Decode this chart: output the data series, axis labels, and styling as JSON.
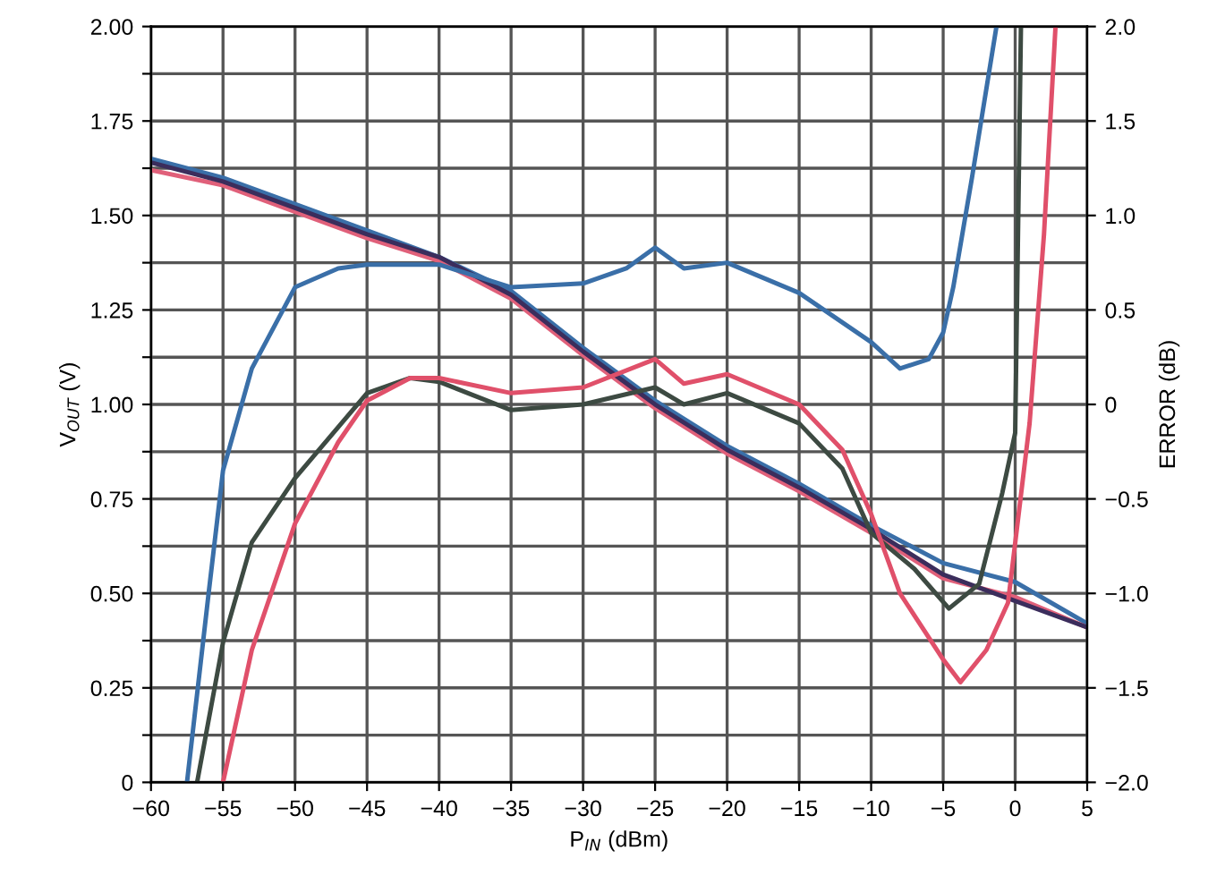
{
  "chart_data": {
    "type": "line",
    "xlabel": "P$_{IN}$ (dBm)",
    "ylabel": "V$_{OUT}$ (V)",
    "y2label": "ERROR (dB)",
    "xlim": [
      -60,
      5
    ],
    "xticks": [
      {
        "value": -60,
        "label": "−60"
      },
      {
        "value": -55,
        "label": "−55"
      },
      {
        "value": -50,
        "label": "−50"
      },
      {
        "value": -45,
        "label": "−45"
      },
      {
        "value": -40,
        "label": "−40"
      },
      {
        "value": -35,
        "label": "−35"
      },
      {
        "value": -30,
        "label": "−30"
      },
      {
        "value": -25,
        "label": "−25"
      },
      {
        "value": -20,
        "label": "−20"
      },
      {
        "value": -15,
        "label": "−15"
      },
      {
        "value": -10,
        "label": "−10"
      },
      {
        "value": -5,
        "label": "−5"
      },
      0,
      5
    ],
    "ylim": [
      0,
      2
    ],
    "yticks": [
      0,
      {
        "value": 0.125,
        "label": null
      },
      0.25,
      {
        "value": 0.375,
        "label": null
      },
      {
        "value": 0.5,
        "label": "0.50"
      },
      {
        "value": 0.625,
        "label": null
      },
      0.75,
      {
        "value": 0.875,
        "label": null
      },
      {
        "value": 1,
        "label": "1.00"
      },
      {
        "value": 1.125,
        "label": null
      },
      1.25,
      {
        "value": 1.375,
        "label": null
      },
      {
        "value": 1.5,
        "label": "1.50"
      },
      {
        "value": 1.625,
        "label": null
      },
      1.75,
      {
        "value": 1.875,
        "label": null
      },
      {
        "value": 2,
        "label": "2.00"
      }
    ],
    "y2lim": [
      -2,
      2
    ],
    "y2ticks": [
      {
        "value": -2,
        "label": "−2.0"
      },
      {
        "value": -1.5,
        "label": "−1.5"
      },
      {
        "value": -1,
        "label": "−1.0"
      },
      {
        "value": -0.5,
        "label": "−0.5"
      },
      0,
      0.5,
      {
        "value": 1,
        "label": "1.0"
      },
      1.5,
      {
        "value": 2,
        "label": "2.0"
      }
    ],
    "grid": true,
    "marker": "none",
    "line_style": "solid",
    "series": [
      {
        "color": "#3a6fa8",
        "x": [
          -60,
          -55,
          -50,
          -45,
          -40,
          -35,
          -30,
          -25,
          -20,
          -15,
          -10,
          -5,
          0,
          5
        ],
        "values": [
          1.65,
          1.6,
          1.53,
          1.46,
          1.39,
          1.3,
          1.15,
          1.01,
          0.89,
          0.79,
          0.68,
          0.58,
          0.53,
          0.42
        ]
      },
      {
        "color": "#e0607a",
        "x": [
          -60,
          -55,
          -50,
          -45,
          -40,
          -35,
          -30,
          -25,
          -20,
          -15,
          -10,
          -5,
          0,
          5
        ],
        "values": [
          1.62,
          1.58,
          1.51,
          1.44,
          1.38,
          1.28,
          1.13,
          0.99,
          0.87,
          0.77,
          0.66,
          0.54,
          0.49,
          0.41
        ]
      },
      {
        "color": "#3b2d5c",
        "x": [
          -60,
          -55,
          -50,
          -45,
          -40,
          -35,
          -30,
          -25,
          -20,
          -15,
          -10,
          -5,
          0,
          5
        ],
        "values": [
          1.64,
          1.59,
          1.52,
          1.45,
          1.39,
          1.29,
          1.14,
          1.0,
          0.88,
          0.78,
          0.67,
          0.55,
          0.48,
          0.41
        ]
      },
      {
        "color": "#3a6fa8",
        "axis": "y2",
        "x": [
          -57.5,
          -56,
          -55,
          -53,
          -50,
          -47,
          -45,
          -40,
          -35,
          -30,
          -27,
          -25,
          -23,
          -20,
          -15,
          -10,
          -8,
          -6,
          -5,
          -4.3,
          -3,
          -1.3
        ],
        "values": [
          -2.0,
          -1.0,
          -0.35,
          0.19,
          0.62,
          0.72,
          0.74,
          0.74,
          0.62,
          0.64,
          0.72,
          0.83,
          0.72,
          0.75,
          0.59,
          0.33,
          0.19,
          0.24,
          0.38,
          0.62,
          1.2,
          2.0
        ]
      },
      {
        "color": "#3d4a42",
        "axis": "y2",
        "x": [
          -56.8,
          -55,
          -53,
          -50,
          -45,
          -42,
          -40,
          -35,
          -30,
          -25,
          -23,
          -20,
          -15,
          -12,
          -10,
          -7,
          -4.6,
          -2.5,
          -0.9,
          0,
          0.4
        ],
        "values": [
          -2.0,
          -1.26,
          -0.73,
          -0.39,
          0.06,
          0.14,
          0.12,
          -0.03,
          0.0,
          0.09,
          0.0,
          0.06,
          -0.1,
          -0.34,
          -0.68,
          -0.87,
          -1.08,
          -0.95,
          -0.47,
          -0.15,
          2.0
        ]
      },
      {
        "color": "#e0506a",
        "axis": "y2",
        "x": [
          -55,
          -53,
          -50,
          -47,
          -45,
          -42,
          -40,
          -35,
          -30,
          -25,
          -23,
          -20,
          -15,
          -12,
          -10,
          -8,
          -5,
          -3.8,
          -2,
          -0.5,
          1,
          2,
          2.8
        ],
        "values": [
          -2.0,
          -1.3,
          -0.63,
          -0.2,
          0.02,
          0.14,
          0.14,
          0.06,
          0.09,
          0.24,
          0.11,
          0.16,
          0.0,
          -0.24,
          -0.58,
          -1.0,
          -1.35,
          -1.47,
          -1.3,
          -1.05,
          -0.1,
          0.9,
          2.0
        ]
      }
    ]
  }
}
